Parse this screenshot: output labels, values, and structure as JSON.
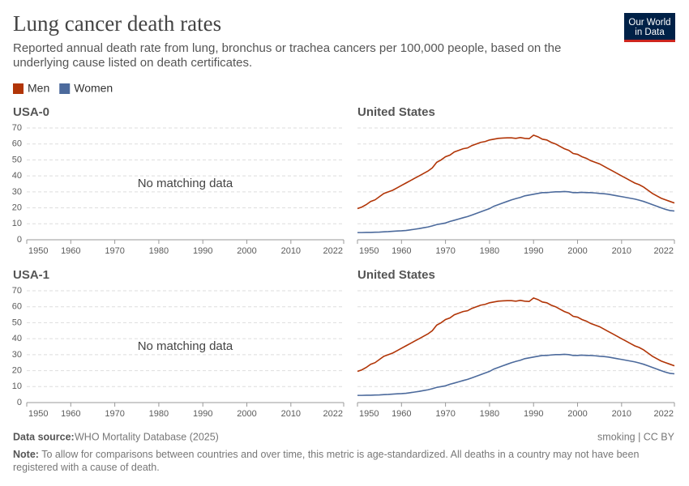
{
  "header": {
    "title": "Lung cancer death rates",
    "subtitle": "Reported annual death rate from lung, bronchus or trachea cancers per 100,000 people, based on the underlying cause listed on death certificates.",
    "logo": [
      "Our World",
      "in Data"
    ]
  },
  "footer": {
    "source_label": "Data source:",
    "source": "WHO Mortality Database (2025)",
    "license": "smoking | CC BY",
    "note_label": "Note:",
    "note": "To allow for comparisons between countries and over time, this metric is age-standardized. All deaths in a country may not have been registered with a cause of death."
  },
  "chart_data": [
    {
      "type": "line",
      "title": "USA-0",
      "annotation": "No matching data",
      "xlim": [
        1950,
        2022
      ],
      "xticks": [
        1950,
        1960,
        1970,
        1980,
        1990,
        2000,
        2010,
        2022
      ],
      "ylim": [
        0,
        70
      ],
      "yticks": [
        0,
        10,
        20,
        30,
        40,
        50,
        60,
        70
      ],
      "grid": true
    },
    {
      "type": "line",
      "title": "United States",
      "xlim": [
        1950,
        2022
      ],
      "xticks": [
        1950,
        1960,
        1970,
        1980,
        1990,
        2000,
        2010,
        2022
      ],
      "ylim": [
        0,
        70
      ],
      "yticks": [
        0,
        10,
        20,
        30,
        40,
        50,
        60,
        70
      ],
      "grid": true,
      "x": [
        1950,
        1951,
        1952,
        1953,
        1954,
        1955,
        1956,
        1957,
        1958,
        1959,
        1960,
        1961,
        1962,
        1963,
        1964,
        1965,
        1966,
        1967,
        1968,
        1969,
        1970,
        1971,
        1972,
        1973,
        1974,
        1975,
        1976,
        1977,
        1978,
        1979,
        1980,
        1981,
        1982,
        1983,
        1984,
        1985,
        1986,
        1987,
        1988,
        1989,
        1990,
        1991,
        1992,
        1993,
        1994,
        1995,
        1996,
        1997,
        1998,
        1999,
        2000,
        2001,
        2002,
        2003,
        2004,
        2005,
        2006,
        2007,
        2008,
        2009,
        2010,
        2011,
        2012,
        2013,
        2014,
        2015,
        2016,
        2017,
        2018,
        2019,
        2020,
        2021,
        2022
      ],
      "series": [
        {
          "name": "Men",
          "color": "#b13507",
          "values": [
            19.5,
            20.5,
            22,
            24,
            25,
            27,
            29,
            30,
            31,
            32.5,
            34,
            35.5,
            37,
            38.5,
            40,
            41.5,
            43,
            45,
            48.5,
            50,
            52,
            53,
            55,
            56,
            57,
            57.5,
            59,
            60,
            61,
            61.5,
            62.5,
            63,
            63.5,
            63.7,
            63.8,
            63.8,
            63.5,
            64,
            63.5,
            63.3,
            65.5,
            64.5,
            63,
            62.5,
            61,
            60,
            58.5,
            57,
            56,
            54,
            53.5,
            52,
            51,
            49.5,
            48.5,
            47.5,
            46,
            44.5,
            43,
            41.5,
            40,
            38.5,
            37,
            35.5,
            34.5,
            33,
            31,
            29,
            27.5,
            26,
            25,
            24,
            23
          ]
        },
        {
          "name": "Women",
          "color": "#4c6a9c",
          "values": [
            4.5,
            4.5,
            4.6,
            4.6,
            4.7,
            4.8,
            5,
            5.1,
            5.3,
            5.5,
            5.6,
            5.8,
            6.2,
            6.6,
            7,
            7.5,
            8,
            8.7,
            9.5,
            10,
            10.5,
            11.5,
            12.2,
            13,
            13.8,
            14.5,
            15.5,
            16.5,
            17.5,
            18.5,
            19.5,
            21,
            22,
            23,
            24,
            25,
            25.8,
            26.5,
            27.5,
            28,
            28.5,
            29,
            29.5,
            29.5,
            29.8,
            30,
            30,
            30.2,
            30,
            29.5,
            29.5,
            29.7,
            29.5,
            29.5,
            29.3,
            29,
            28.8,
            28.5,
            28,
            27.5,
            27,
            26.5,
            26,
            25.5,
            24.8,
            24,
            23,
            22,
            21,
            20,
            19,
            18.3,
            18
          ]
        }
      ]
    },
    {
      "type": "line",
      "title": "USA-1",
      "annotation": "No matching data",
      "xlim": [
        1950,
        2022
      ],
      "xticks": [
        1950,
        1960,
        1970,
        1980,
        1990,
        2000,
        2010,
        2022
      ],
      "ylim": [
        0,
        70
      ],
      "yticks": [
        0,
        10,
        20,
        30,
        40,
        50,
        60,
        70
      ],
      "grid": true
    },
    {
      "type": "line",
      "title": "United States",
      "xlim": [
        1950,
        2022
      ],
      "xticks": [
        1950,
        1960,
        1970,
        1980,
        1990,
        2000,
        2010,
        2022
      ],
      "ylim": [
        0,
        70
      ],
      "yticks": [
        0,
        10,
        20,
        30,
        40,
        50,
        60,
        70
      ],
      "grid": true,
      "x": [
        1950,
        1951,
        1952,
        1953,
        1954,
        1955,
        1956,
        1957,
        1958,
        1959,
        1960,
        1961,
        1962,
        1963,
        1964,
        1965,
        1966,
        1967,
        1968,
        1969,
        1970,
        1971,
        1972,
        1973,
        1974,
        1975,
        1976,
        1977,
        1978,
        1979,
        1980,
        1981,
        1982,
        1983,
        1984,
        1985,
        1986,
        1987,
        1988,
        1989,
        1990,
        1991,
        1992,
        1993,
        1994,
        1995,
        1996,
        1997,
        1998,
        1999,
        2000,
        2001,
        2002,
        2003,
        2004,
        2005,
        2006,
        2007,
        2008,
        2009,
        2010,
        2011,
        2012,
        2013,
        2014,
        2015,
        2016,
        2017,
        2018,
        2019,
        2020,
        2021,
        2022
      ],
      "series": [
        {
          "name": "Men",
          "color": "#b13507",
          "values": [
            19.5,
            20.5,
            22,
            24,
            25,
            27,
            29,
            30,
            31,
            32.5,
            34,
            35.5,
            37,
            38.5,
            40,
            41.5,
            43,
            45,
            48.5,
            50,
            52,
            53,
            55,
            56,
            57,
            57.5,
            59,
            60,
            61,
            61.5,
            62.5,
            63,
            63.5,
            63.7,
            63.8,
            63.8,
            63.5,
            64,
            63.5,
            63.3,
            65.5,
            64.5,
            63,
            62.5,
            61,
            60,
            58.5,
            57,
            56,
            54,
            53.5,
            52,
            51,
            49.5,
            48.5,
            47.5,
            46,
            44.5,
            43,
            41.5,
            40,
            38.5,
            37,
            35.5,
            34.5,
            33,
            31,
            29,
            27.5,
            26,
            25,
            24,
            23
          ]
        },
        {
          "name": "Women",
          "color": "#4c6a9c",
          "values": [
            4.5,
            4.5,
            4.6,
            4.6,
            4.7,
            4.8,
            5,
            5.1,
            5.3,
            5.5,
            5.6,
            5.8,
            6.2,
            6.6,
            7,
            7.5,
            8,
            8.7,
            9.5,
            10,
            10.5,
            11.5,
            12.2,
            13,
            13.8,
            14.5,
            15.5,
            16.5,
            17.5,
            18.5,
            19.5,
            21,
            22,
            23,
            24,
            25,
            25.8,
            26.5,
            27.5,
            28,
            28.5,
            29,
            29.5,
            29.5,
            29.8,
            30,
            30,
            30.2,
            30,
            29.5,
            29.5,
            29.7,
            29.5,
            29.5,
            29.3,
            29,
            28.8,
            28.5,
            28,
            27.5,
            27,
            26.5,
            26,
            25.5,
            24.8,
            24,
            23,
            22,
            21,
            20,
            19,
            18.3,
            18
          ]
        }
      ]
    }
  ]
}
